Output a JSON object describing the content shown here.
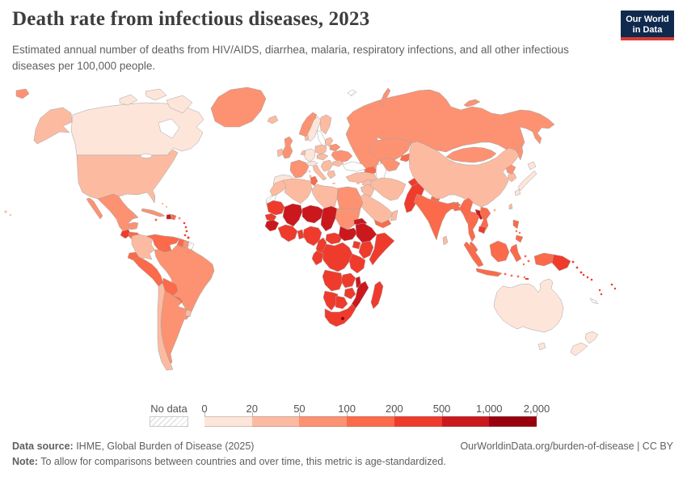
{
  "header": {
    "title": "Death rate from infectious diseases, 2023",
    "subtitle": "Estimated annual number of deaths from HIV/AIDS, diarrhea, malaria, respiratory infections, and all other infectious diseases per 100,000 people.",
    "logo": {
      "line1": "Our World",
      "line2": "in Data",
      "bg_color": "#0f2a4e",
      "accent_color": "#d73c34"
    }
  },
  "legend": {
    "no_data_label": "No data",
    "tick_labels": [
      "0",
      "20",
      "50",
      "100",
      "200",
      "500",
      "1,000",
      "2,000"
    ],
    "bin_colors": [
      "#fee5d9",
      "#fcbba1",
      "#fc9272",
      "#fb6a4a",
      "#ef3b2c",
      "#cb181d",
      "#99000d"
    ]
  },
  "footer": {
    "source_label": "Data source:",
    "source_text": " IHME, Global Burden of Disease (2025)",
    "note_label": "Note:",
    "note_text": " To allow for comparisons between countries and over time, this metric is age-standardized.",
    "link_text": "OurWorldinData.org/burden-of-disease | CC BY"
  },
  "chart_data": {
    "type": "choropleth_map",
    "title": "Death rate from infectious diseases",
    "year": 2023,
    "unit": "deaths per 100,000 people",
    "legend_position": "bottom",
    "bin_edges": [
      0,
      20,
      50,
      100,
      200,
      500,
      1000,
      2000
    ],
    "bin_colors": [
      "#fee5d9",
      "#fcbba1",
      "#fc9272",
      "#fb6a4a",
      "#ef3b2c",
      "#cb181d",
      "#99000d"
    ],
    "no_data_style": "white-diagonal-hatch",
    "region_bins": {
      "canada": 0,
      "arctic-island-1": 0,
      "arctic-island-2": 0,
      "baffin-island": 0,
      "alaska": 1,
      "usa": 1,
      "hawaii": 1,
      "greenland": 2,
      "mexico": 2,
      "guatemala": 4,
      "honduras-nicaragua": 3,
      "costa-rica-panama": 1,
      "cuba": 2,
      "haiti": 5,
      "dominican-republic": 3,
      "jamaica": 3,
      "puerto-rico": 2,
      "bahamas": 1,
      "lesser-antilles": 4,
      "trinidad": 4,
      "colombia": 1,
      "venezuela": 3,
      "guyana": 3,
      "suriname": 2,
      "french-guiana": null,
      "ecuador": 3,
      "peru": 3,
      "brazil": 2,
      "bolivia": 3,
      "paraguay": 3,
      "chile": 1,
      "argentina": 2,
      "uruguay": 1,
      "iceland": 1,
      "uk": 2,
      "ireland": 1,
      "norway": 2,
      "sweden": 0,
      "finland": 1,
      "denmark": 1,
      "germany": 0,
      "benelux": 1,
      "france": 2,
      "iberia": 0,
      "switzerland-austria": 0,
      "italy": 1,
      "corsica-sardinia": 1,
      "poland": 1,
      "czech-hungary": 1,
      "baltics": 1,
      "belarus": 2,
      "ukraine": 2,
      "romania": 1,
      "balkans": 1,
      "greece": 1,
      "crete": 1,
      "cyprus": 1,
      "russia": 2,
      "russia-fragment": 2,
      "novaya-zemlya": 2,
      "new-siberian-islands": 2,
      "sakhalin": 2,
      "svalbard": null,
      "kazakhstan": 2,
      "uzbekistan-turkmenistan": 2,
      "kyrgyzstan-tajikistan": 3,
      "caucasus": 3,
      "turkey": 1,
      "syria": 1,
      "israel-jordan": 1,
      "iraq": 1,
      "iran": 1,
      "saudi-arabia": 1,
      "yemen": 3,
      "oman": 1,
      "morocco": 1,
      "western-sahara": null,
      "algeria": 1,
      "tunisia": 3,
      "libya": 1,
      "egypt": 2,
      "mauritania": 4,
      "mali": 5,
      "niger": 5,
      "chad": 5,
      "sudan": 2,
      "senegal": 4,
      "guinea": 5,
      "ivory-coast-ghana": 4,
      "togo-benin": 4,
      "nigeria": 4,
      "cameroon": 4,
      "central-african-republic": 4,
      "south-sudan": 5,
      "eritrea": 5,
      "ethiopia": 5,
      "somalia": 4,
      "kenya": 4,
      "uganda": 4,
      "drc": 4,
      "congo-gabon": 4,
      "tanzania": 4,
      "angola": 4,
      "zambia": 4,
      "malawi": 5,
      "mozambique": 5,
      "zimbabwe": 4,
      "namibia": 4,
      "botswana": 4,
      "south-africa": 4,
      "lesotho": 6,
      "madagascar": 4,
      "afghanistan": 4,
      "pakistan": 4,
      "india": 3,
      "nepal": 3,
      "bangladesh": 3,
      "sri-lanka": 1,
      "china": 1,
      "mongolia": 2,
      "north-korea": 2,
      "south-korea": 1,
      "japan": 0,
      "taiwan": 1,
      "hainan": 1,
      "myanmar": 3,
      "thailand": 3,
      "laos": 5,
      "vietnam": 3,
      "cambodia": 4,
      "malaysia": 3,
      "sumatra": 3,
      "java": 3,
      "borneo": 3,
      "sulawesi": 3,
      "maluku": 3,
      "lesser-sunda": 3,
      "timor": 4,
      "new-guinea-west": 3,
      "papua-new-guinea": 4,
      "philippines": 3,
      "australia": 0,
      "tasmania": 0,
      "new-zealand": 0,
      "fiji": 4,
      "vanuatu": 4,
      "solomon-islands": 4,
      "new-caledonia": null
    }
  }
}
